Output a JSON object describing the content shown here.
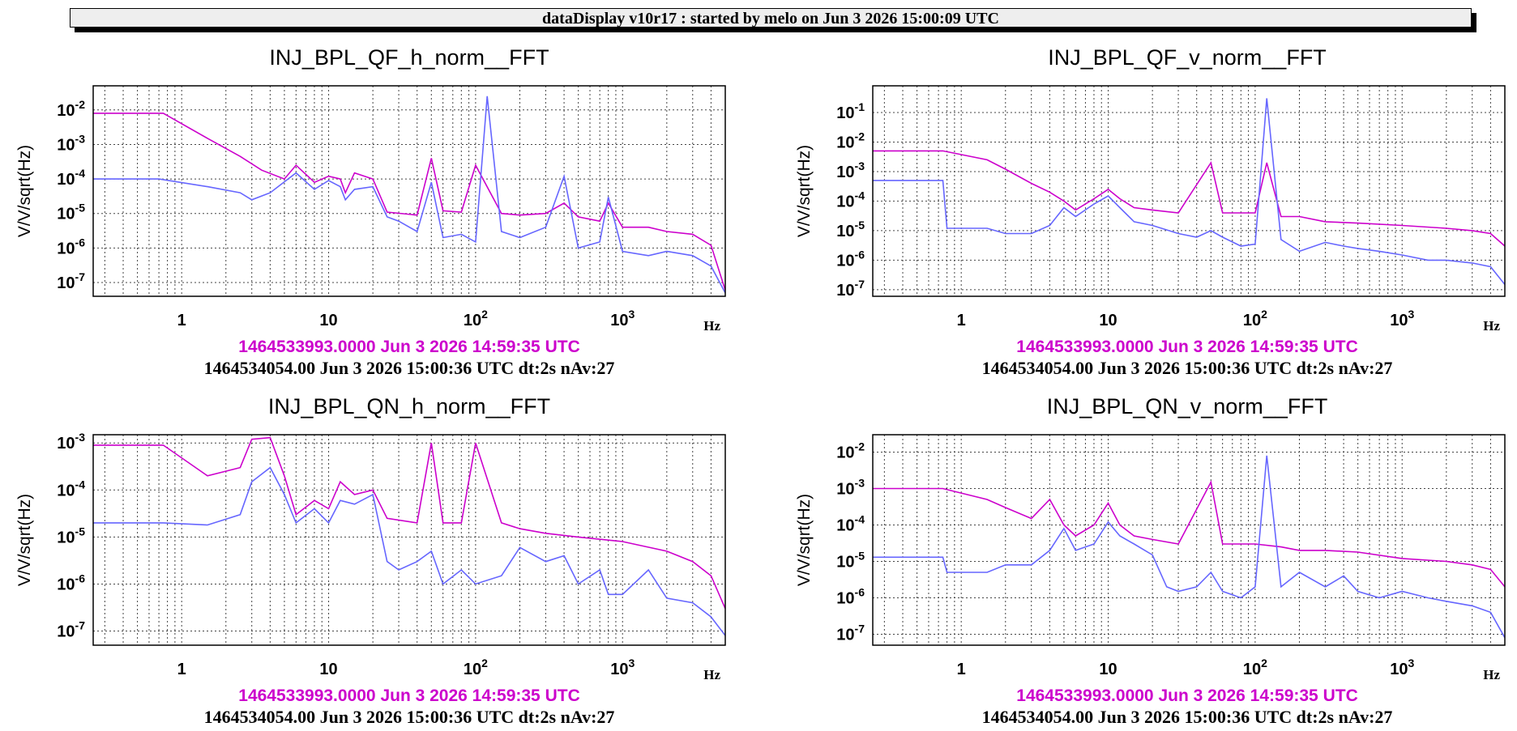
{
  "banner": "dataDisplay v10r17 : started by melo on Jun  3 2026 15:00:09 UTC",
  "colors": {
    "ref": "#cc00cc",
    "live": "#6666ff"
  },
  "chart_data": [
    {
      "type": "line",
      "title": "INJ_BPL_QF_h_norm__FFT",
      "ylabel": "V/V/sqrt(Hz)",
      "xunit": "Hz",
      "x_scale": "log",
      "y_scale": "log",
      "xlim": [
        0.25,
        5000
      ],
      "ylim": [
        4e-08,
        0.05
      ],
      "x_ticks": [
        {
          "v": 1,
          "label": "1"
        },
        {
          "v": 10,
          "label": "10"
        },
        {
          "v": 100,
          "label": "10",
          "exp": "2"
        },
        {
          "v": 1000,
          "label": "10",
          "exp": "3"
        }
      ],
      "y_ticks": [
        {
          "v": 1e-07,
          "label": "10",
          "exp": "-7"
        },
        {
          "v": 1e-06,
          "label": "10",
          "exp": "-6"
        },
        {
          "v": 1e-05,
          "label": "10",
          "exp": "-5"
        },
        {
          "v": 0.0001,
          "label": "10",
          "exp": "-4"
        },
        {
          "v": 0.001,
          "label": "10",
          "exp": "-3"
        },
        {
          "v": 0.01,
          "label": "10",
          "exp": "-2"
        }
      ],
      "grid": true,
      "ref_time": "1464533993.0000 Jun 3 2026 14:59:35 UTC",
      "live_time": "1464534054.00 Jun 3 2026 15:00:36 UTC dt:2s nAv:27",
      "series": [
        {
          "role": "ref",
          "x": [
            0.25,
            0.75,
            1.5,
            2.5,
            3.5,
            5,
            6,
            8,
            10,
            12,
            13,
            15,
            20,
            25,
            40,
            50,
            60,
            80,
            100,
            150,
            200,
            300,
            400,
            500,
            700,
            800,
            1000,
            1500,
            2000,
            3000,
            4000,
            5000
          ],
          "y": [
            0.008,
            0.008,
            0.0015,
            0.00045,
            0.00018,
            0.0001,
            0.00025,
            8e-05,
            0.00012,
            0.0001,
            4e-05,
            0.00015,
            0.0001,
            1.1e-05,
            9e-06,
            0.0004,
            1.2e-05,
            1.1e-05,
            0.00025,
            1e-05,
            9e-06,
            1e-05,
            2e-05,
            8e-06,
            6e-06,
            2e-05,
            4e-06,
            4e-06,
            3e-06,
            2.5e-06,
            1.2e-06,
            6e-08
          ]
        },
        {
          "role": "live",
          "x": [
            0.25,
            0.7,
            1.5,
            2.5,
            3,
            4,
            6,
            8,
            10,
            12,
            13,
            15,
            20,
            25,
            30,
            40,
            50,
            60,
            80,
            100,
            120,
            150,
            200,
            300,
            400,
            500,
            700,
            800,
            1000,
            1500,
            2000,
            3000,
            4000,
            5000
          ],
          "y": [
            0.0001,
            0.0001,
            6e-05,
            4e-05,
            2.5e-05,
            4e-05,
            0.00015,
            5e-05,
            9e-05,
            6e-05,
            2.5e-05,
            5e-05,
            6e-05,
            8e-06,
            6e-06,
            3e-06,
            8e-05,
            2e-06,
            2.5e-06,
            1.5e-06,
            0.025,
            3e-06,
            2e-06,
            4e-06,
            0.00012,
            1e-06,
            1.5e-06,
            3e-05,
            8e-07,
            6e-07,
            8e-07,
            6e-07,
            3e-07,
            5e-08
          ]
        }
      ]
    },
    {
      "type": "line",
      "title": "INJ_BPL_QF_v_norm__FFT",
      "ylabel": "V/V/sqrt(Hz)",
      "xunit": "Hz",
      "x_scale": "log",
      "y_scale": "log",
      "xlim": [
        0.25,
        5000
      ],
      "ylim": [
        6e-08,
        0.8
      ],
      "x_ticks": [
        {
          "v": 1,
          "label": "1"
        },
        {
          "v": 10,
          "label": "10"
        },
        {
          "v": 100,
          "label": "10",
          "exp": "2"
        },
        {
          "v": 1000,
          "label": "10",
          "exp": "3"
        }
      ],
      "y_ticks": [
        {
          "v": 1e-07,
          "label": "10",
          "exp": "-7"
        },
        {
          "v": 1e-06,
          "label": "10",
          "exp": "-6"
        },
        {
          "v": 1e-05,
          "label": "10",
          "exp": "-5"
        },
        {
          "v": 0.0001,
          "label": "10",
          "exp": "-4"
        },
        {
          "v": 0.001,
          "label": "10",
          "exp": "-3"
        },
        {
          "v": 0.01,
          "label": "10",
          "exp": "-2"
        },
        {
          "v": 0.1,
          "label": "10",
          "exp": "-1"
        }
      ],
      "grid": true,
      "ref_time": "1464533993.0000 Jun 3 2026 14:59:35 UTC",
      "live_time": "1464534054.00 Jun 3 2026 15:00:36 UTC dt:2s nAv:27",
      "series": [
        {
          "role": "ref",
          "x": [
            0.25,
            0.75,
            1.5,
            2,
            3,
            4,
            5,
            6,
            8,
            10,
            12,
            15,
            20,
            30,
            50,
            60,
            100,
            120,
            150,
            200,
            300,
            500,
            1000,
            2000,
            3000,
            4000,
            5000
          ],
          "y": [
            0.005,
            0.005,
            0.0025,
            0.0012,
            0.0004,
            0.0002,
            0.0001,
            5e-05,
            0.00012,
            0.00025,
            0.00012,
            6e-05,
            5e-05,
            4e-05,
            0.002,
            4e-05,
            4e-05,
            0.002,
            3e-05,
            3e-05,
            2e-05,
            1.8e-05,
            1.5e-05,
            1.2e-05,
            1e-05,
            8e-06,
            3e-06
          ]
        },
        {
          "role": "live",
          "x": [
            0.25,
            0.75,
            0.8,
            1.5,
            2,
            3,
            4,
            5,
            6,
            8,
            10,
            12,
            15,
            20,
            30,
            40,
            50,
            60,
            80,
            100,
            120,
            150,
            200,
            300,
            400,
            500,
            700,
            1000,
            1500,
            2000,
            3000,
            4000,
            5000
          ],
          "y": [
            0.0005,
            0.0005,
            1.2e-05,
            1.2e-05,
            8e-06,
            8e-06,
            1.5e-05,
            6e-05,
            3e-05,
            8e-05,
            0.00015,
            6e-05,
            2e-05,
            1.5e-05,
            8e-06,
            6e-06,
            1e-05,
            6e-06,
            3e-06,
            3.5e-06,
            0.3,
            5e-06,
            2e-06,
            4e-06,
            3e-06,
            2.5e-06,
            2e-06,
            1.5e-06,
            1e-06,
            1e-06,
            8e-07,
            6e-07,
            1.5e-07
          ]
        }
      ]
    },
    {
      "type": "line",
      "title": "INJ_BPL_QN_h_norm__FFT",
      "ylabel": "V/V/sqrt(Hz)",
      "xunit": "Hz",
      "x_scale": "log",
      "y_scale": "log",
      "xlim": [
        0.25,
        5000
      ],
      "ylim": [
        5e-08,
        0.0015
      ],
      "x_ticks": [
        {
          "v": 1,
          "label": "1"
        },
        {
          "v": 10,
          "label": "10"
        },
        {
          "v": 100,
          "label": "10",
          "exp": "2"
        },
        {
          "v": 1000,
          "label": "10",
          "exp": "3"
        }
      ],
      "y_ticks": [
        {
          "v": 1e-07,
          "label": "10",
          "exp": "-7"
        },
        {
          "v": 1e-06,
          "label": "10",
          "exp": "-6"
        },
        {
          "v": 1e-05,
          "label": "10",
          "exp": "-5"
        },
        {
          "v": 0.0001,
          "label": "10",
          "exp": "-4"
        },
        {
          "v": 0.001,
          "label": "10",
          "exp": "-3"
        }
      ],
      "grid": true,
      "ref_time": "1464533993.0000 Jun 3 2026 14:59:35 UTC",
      "live_time": "1464534054.00 Jun 3 2026 15:00:36 UTC dt:2s nAv:27",
      "series": [
        {
          "role": "ref",
          "x": [
            0.25,
            0.75,
            1.5,
            2.5,
            3,
            4,
            5,
            6,
            8,
            10,
            12,
            15,
            20,
            25,
            40,
            50,
            60,
            80,
            100,
            150,
            200,
            300,
            500,
            1000,
            2000,
            3000,
            4000,
            5000
          ],
          "y": [
            0.0009,
            0.0009,
            0.0002,
            0.0003,
            0.0012,
            0.0013,
            0.0002,
            3e-05,
            6e-05,
            4e-05,
            0.00015,
            8e-05,
            0.0001,
            2.5e-05,
            2e-05,
            0.001,
            2e-05,
            2e-05,
            0.001,
            2e-05,
            1.5e-05,
            1.2e-05,
            1e-05,
            8e-06,
            5e-06,
            3e-06,
            1.5e-06,
            3e-07
          ]
        },
        {
          "role": "live",
          "x": [
            0.25,
            0.75,
            1.5,
            2.5,
            3,
            4,
            5,
            6,
            8,
            10,
            12,
            15,
            20,
            25,
            30,
            40,
            50,
            60,
            80,
            100,
            150,
            200,
            300,
            400,
            500,
            700,
            800,
            1000,
            1500,
            2000,
            3000,
            4000,
            5000
          ],
          "y": [
            2e-05,
            2e-05,
            1.8e-05,
            3e-05,
            0.00015,
            0.0003,
            8e-05,
            2e-05,
            4e-05,
            2e-05,
            6e-05,
            5e-05,
            8e-05,
            3e-06,
            2e-06,
            3e-06,
            5e-06,
            1e-06,
            2e-06,
            1e-06,
            1.5e-06,
            6e-06,
            3e-06,
            4e-06,
            1e-06,
            2e-06,
            6e-07,
            6e-07,
            2e-06,
            5e-07,
            4e-07,
            2e-07,
            8e-08
          ]
        }
      ]
    },
    {
      "type": "line",
      "title": "INJ_BPL_QN_v_norm__FFT",
      "ylabel": "V/V/sqrt(Hz)",
      "xunit": "Hz",
      "x_scale": "log",
      "y_scale": "log",
      "xlim": [
        0.25,
        5000
      ],
      "ylim": [
        5e-08,
        0.03
      ],
      "x_ticks": [
        {
          "v": 1,
          "label": "1"
        },
        {
          "v": 10,
          "label": "10"
        },
        {
          "v": 100,
          "label": "10",
          "exp": "2"
        },
        {
          "v": 1000,
          "label": "10",
          "exp": "3"
        }
      ],
      "y_ticks": [
        {
          "v": 1e-07,
          "label": "10",
          "exp": "-7"
        },
        {
          "v": 1e-06,
          "label": "10",
          "exp": "-6"
        },
        {
          "v": 1e-05,
          "label": "10",
          "exp": "-5"
        },
        {
          "v": 0.0001,
          "label": "10",
          "exp": "-4"
        },
        {
          "v": 0.001,
          "label": "10",
          "exp": "-3"
        },
        {
          "v": 0.01,
          "label": "10",
          "exp": "-2"
        }
      ],
      "grid": true,
      "ref_time": "1464533993.0000 Jun 3 2026 14:59:35 UTC",
      "live_time": "1464534054.00 Jun 3 2026 15:00:36 UTC dt:2s nAv:27",
      "series": [
        {
          "role": "ref",
          "x": [
            0.25,
            0.75,
            1.5,
            2,
            3,
            4,
            5,
            6,
            8,
            10,
            12,
            15,
            20,
            30,
            50,
            60,
            100,
            150,
            200,
            300,
            500,
            1000,
            2000,
            3000,
            4000,
            5000
          ],
          "y": [
            0.001,
            0.001,
            0.0005,
            0.0003,
            0.00015,
            0.0005,
            0.0001,
            5e-05,
            0.0001,
            0.0004,
            0.0001,
            5e-05,
            4e-05,
            3e-05,
            0.0015,
            3e-05,
            3e-05,
            2.5e-05,
            2e-05,
            2e-05,
            1.8e-05,
            1.2e-05,
            1e-05,
            8e-06,
            6e-06,
            2e-06
          ]
        },
        {
          "role": "live",
          "x": [
            0.25,
            0.75,
            0.8,
            1.5,
            2,
            3,
            4,
            5,
            6,
            8,
            10,
            12,
            15,
            20,
            25,
            30,
            40,
            50,
            60,
            80,
            100,
            120,
            150,
            200,
            300,
            400,
            500,
            700,
            1000,
            1500,
            2000,
            3000,
            4000,
            5000
          ],
          "y": [
            1.3e-05,
            1.3e-05,
            5e-06,
            5e-06,
            8e-06,
            8e-06,
            2e-05,
            8e-05,
            2e-05,
            3e-05,
            0.00012,
            5e-05,
            3e-05,
            1.5e-05,
            2e-06,
            1.5e-06,
            2e-06,
            5e-06,
            1.5e-06,
            1e-06,
            2e-06,
            0.008,
            2e-06,
            5e-06,
            2e-06,
            4e-06,
            1.5e-06,
            1e-06,
            1.5e-06,
            1e-06,
            8e-07,
            6e-07,
            4e-07,
            8e-08
          ]
        }
      ]
    }
  ]
}
